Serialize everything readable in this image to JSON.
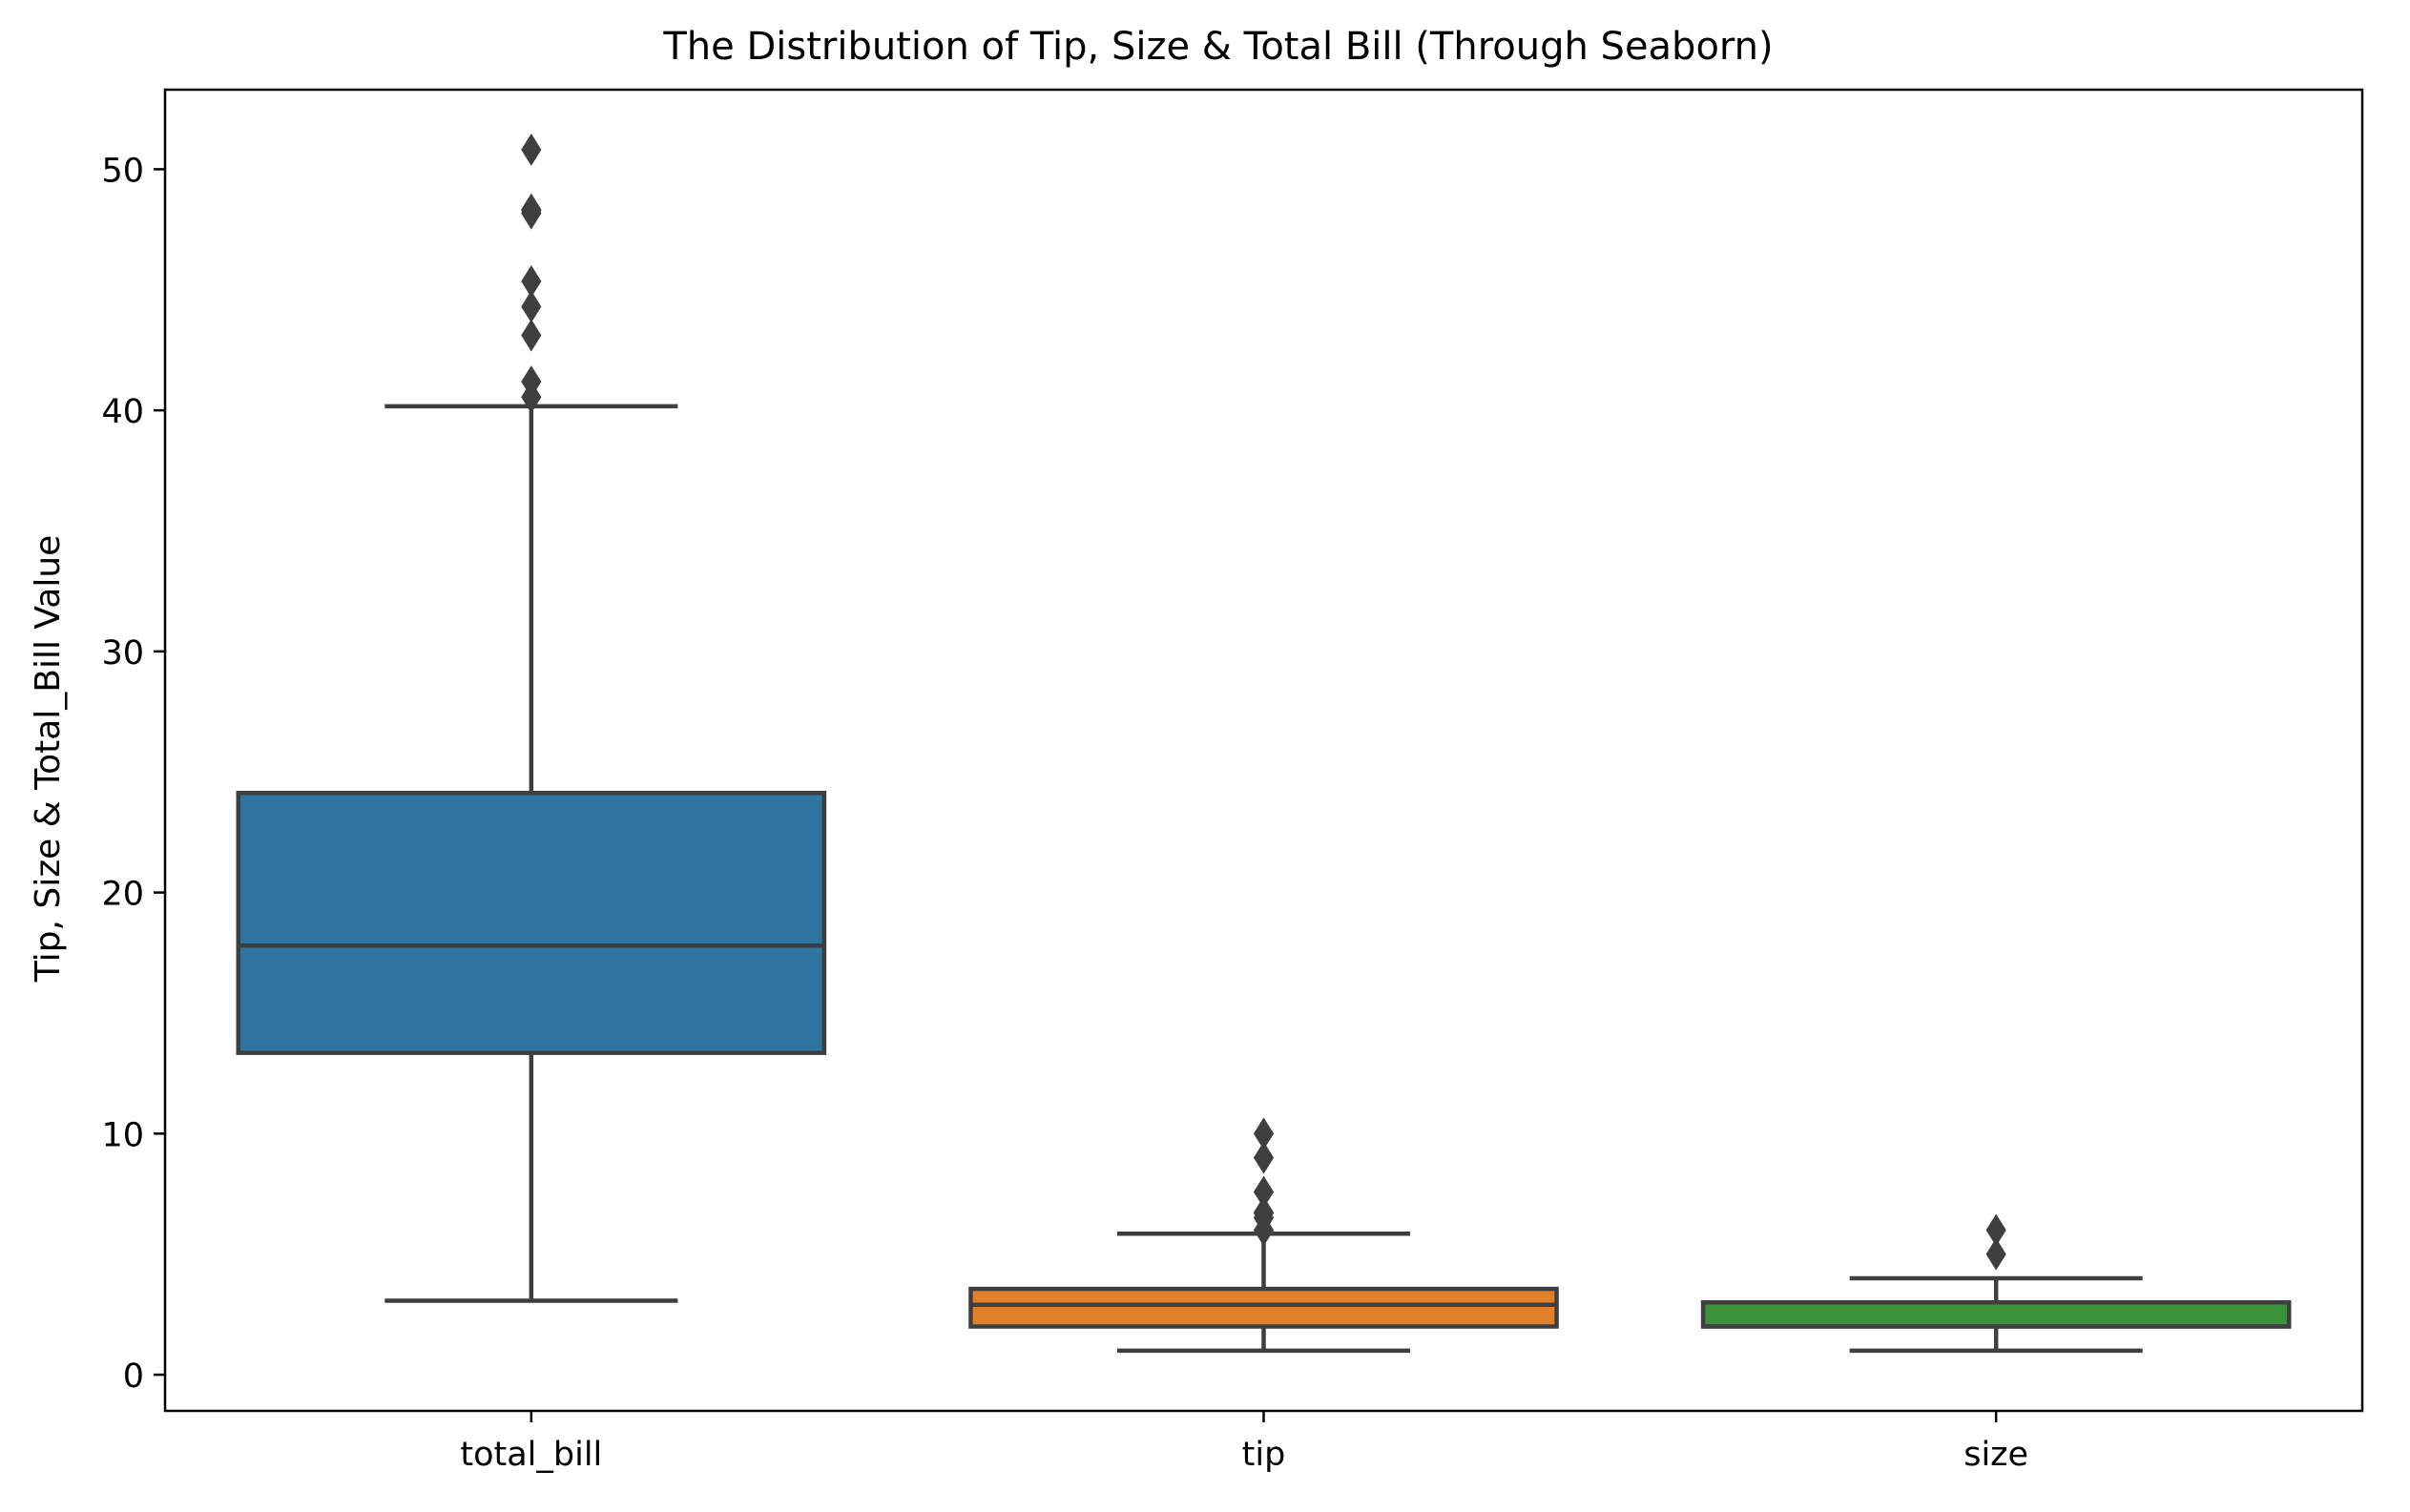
{
  "chart_data": {
    "type": "box",
    "title": "The Distribution of Tip, Size & Total Bill (Through Seaborn)",
    "xlabel": "",
    "ylabel": "Tip, Size & Total_Bill Value",
    "ylim": [
      -1.5,
      53.3
    ],
    "yticks": [
      0,
      10,
      20,
      30,
      40,
      50
    ],
    "ytick_labels": [
      "0",
      "10",
      "20",
      "30",
      "40",
      "50"
    ],
    "grid": false,
    "categories": [
      "total_bill",
      "tip",
      "size"
    ],
    "boxes": [
      {
        "category": "total_bill",
        "color": "#3274a1",
        "q1": 13.35,
        "median": 17.8,
        "q3": 24.13,
        "whisker_low": 3.07,
        "whisker_high": 40.17,
        "outliers": [
          40.55,
          41.19,
          43.11,
          44.3,
          45.35,
          48.17,
          48.27,
          48.33,
          50.81
        ]
      },
      {
        "category": "tip",
        "color": "#e1812c",
        "q1": 2.0,
        "median": 2.9,
        "q3": 3.56,
        "whisker_low": 1.0,
        "whisker_high": 5.85,
        "outliers": [
          6.0,
          6.5,
          6.7,
          6.73,
          7.58,
          9.0,
          10.0
        ]
      },
      {
        "category": "size",
        "color": "#3a923a",
        "q1": 2.0,
        "median": 2.0,
        "q3": 3.0,
        "whisker_low": 1.0,
        "whisker_high": 4.0,
        "outliers": [
          5,
          6
        ]
      }
    ],
    "line_color": "#3f3f3f"
  }
}
